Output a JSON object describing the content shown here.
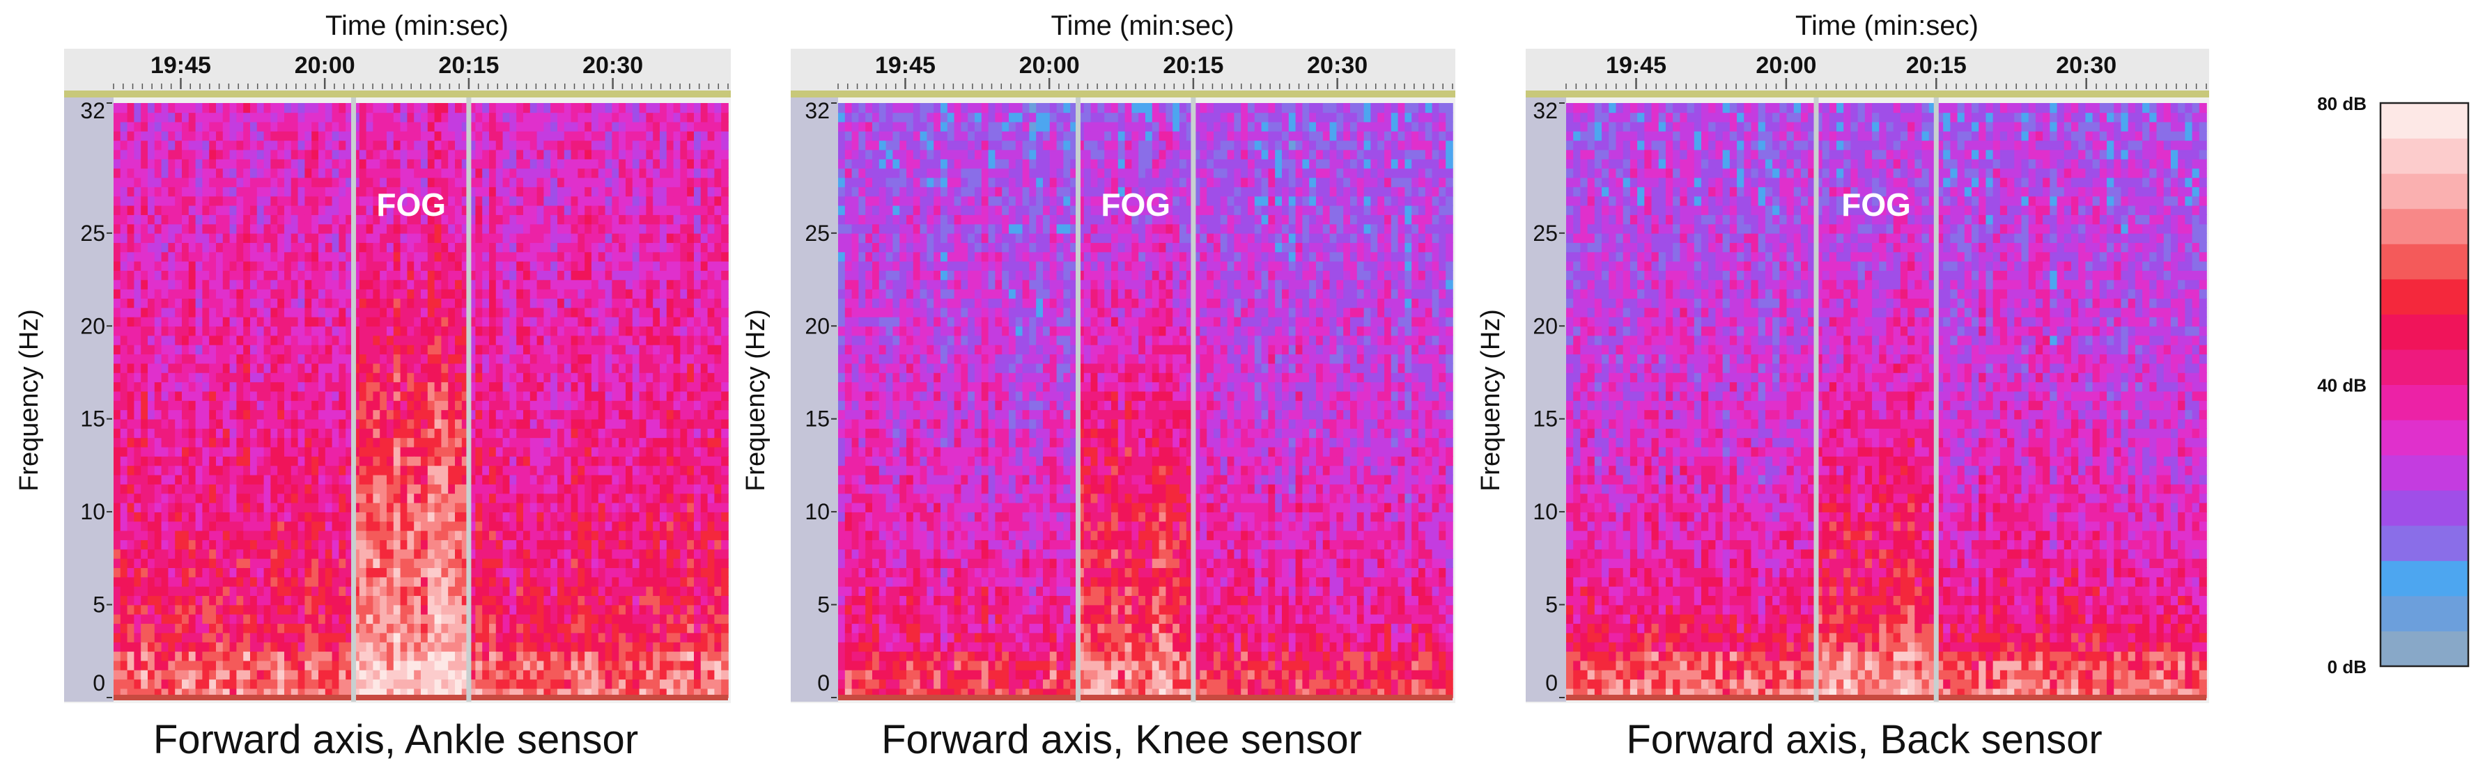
{
  "chart_data": [
    {
      "type": "heatmap",
      "caption": "Forward axis, Ankle sensor",
      "xlabel": "Time (min:sec)",
      "ylabel": "Frequency (Hz)",
      "x_ticks": [
        "19:45",
        "20:00",
        "20:15",
        "20:30"
      ],
      "x_range": [
        "19:38",
        "20:42"
      ],
      "y_ticks": [
        0,
        5,
        10,
        15,
        20,
        25,
        32
      ],
      "ylim": [
        0,
        32
      ],
      "markers": [
        "20:03",
        "20:15"
      ],
      "annotation": "FOG",
      "fog_band": [
        "20:03",
        "20:15"
      ],
      "intensity_profile": {
        "base_db": 44,
        "fog_boost_db": 16,
        "low_freq_boost_db": 12,
        "high_freq_drop_db": 8
      }
    },
    {
      "type": "heatmap",
      "caption": "Forward axis, Knee sensor",
      "xlabel": "Time (min:sec)",
      "ylabel": "Frequency (Hz)",
      "x_ticks": [
        "19:45",
        "20:00",
        "20:15",
        "20:30"
      ],
      "x_range": [
        "19:38",
        "20:42"
      ],
      "y_ticks": [
        0,
        5,
        10,
        15,
        20,
        25,
        32
      ],
      "ylim": [
        0,
        32
      ],
      "markers": [
        "20:03",
        "20:15"
      ],
      "annotation": "FOG",
      "fog_band": [
        "20:03",
        "20:15"
      ],
      "intensity_profile": {
        "base_db": 36,
        "fog_boost_db": 14,
        "low_freq_boost_db": 12,
        "high_freq_drop_db": 10
      }
    },
    {
      "type": "heatmap",
      "caption": "Forward axis, Back sensor",
      "xlabel": "Time (min:sec)",
      "ylabel": "Frequency (Hz)",
      "x_ticks": [
        "19:45",
        "20:00",
        "20:15",
        "20:30"
      ],
      "x_range": [
        "19:38",
        "20:42"
      ],
      "y_ticks": [
        0,
        5,
        10,
        15,
        20,
        25,
        32
      ],
      "ylim": [
        0,
        32
      ],
      "markers": [
        "20:03",
        "20:15"
      ],
      "annotation": "FOG",
      "fog_band": [
        "20:03",
        "20:15"
      ],
      "intensity_profile": {
        "base_db": 34,
        "fog_boost_db": 10,
        "low_freq_boost_db": 22,
        "high_freq_drop_db": 8
      }
    }
  ],
  "colorbar": {
    "min_db": 0,
    "max_db": 80,
    "labels": [
      "80 dB",
      "40 dB",
      "0 dB"
    ],
    "label_values": [
      80,
      40,
      0
    ],
    "colors": [
      "#88a8c8",
      "#6c9fdc",
      "#4da6f0",
      "#8a6ee8",
      "#a04ee8",
      "#c43ce0",
      "#e030cc",
      "#ec22a6",
      "#ee1a7e",
      "#f0145a",
      "#f4283c",
      "#f45a5a",
      "#f88888",
      "#fab0b0",
      "#fccccc",
      "#fde8e6"
    ]
  }
}
